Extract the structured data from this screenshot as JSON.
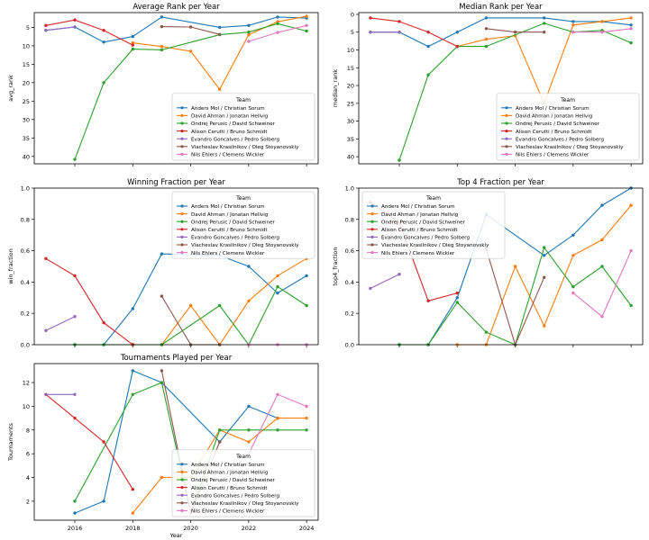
{
  "teams": [
    {
      "name": "Anders Mol / Christian Sorum",
      "color": "#1f77b4"
    },
    {
      "name": "David Ahman / Jonatan Hellvig",
      "color": "#ff7f0e"
    },
    {
      "name": "Ondrej Perusic / David Schweiner",
      "color": "#2ca02c"
    },
    {
      "name": "Alison Cerutti / Bruno Schmidt",
      "color": "#d62728"
    },
    {
      "name": "Evandro Goncalves / Pedro Solberg",
      "color": "#9467bd"
    },
    {
      "name": "Viacheslav Krasilnikov / Oleg Stoyanovskiy",
      "color": "#8c564b"
    },
    {
      "name": "Nils Ehlers / Clemens Wickler",
      "color": "#e377c2"
    }
  ],
  "legend_title": "Team",
  "chart_data": [
    {
      "type": "line",
      "title": "Average Rank per Year",
      "xlabel": "",
      "ylabel": "avg_rank",
      "inverted_y": true,
      "ylim": [
        1,
        42
      ],
      "yticks": [
        5,
        10,
        15,
        20,
        25,
        30,
        35,
        40
      ],
      "xlim": [
        2014.6,
        2024.4
      ],
      "xticks": [
        2016,
        2018,
        2020,
        2022,
        2024
      ],
      "show_xtick_labels": false,
      "legend_position": "lower-right",
      "series": [
        {
          "team": 0,
          "x": [
            2015,
            2016,
            2017,
            2018,
            2019,
            2021,
            2022,
            2023,
            2024
          ],
          "y": [
            5.8,
            4.9,
            9.0,
            7.5,
            2.2,
            5.0,
            4.5,
            2.2,
            2.5
          ]
        },
        {
          "team": 1,
          "x": [
            2018,
            2019,
            2020,
            2021,
            2022,
            2023,
            2024
          ],
          "y": [
            9.2,
            10.2,
            11.5,
            21.8,
            7.0,
            3.5,
            2.0
          ]
        },
        {
          "team": 2,
          "x": [
            2016,
            2017,
            2018,
            2019,
            2021,
            2022,
            2023,
            2024
          ],
          "y": [
            40.8,
            20.0,
            10.9,
            11.1,
            7.0,
            6.3,
            4.0,
            6.0
          ]
        },
        {
          "team": 3,
          "x": [
            2015,
            2016,
            2017,
            2018
          ],
          "y": [
            4.5,
            3.0,
            5.8,
            9.8
          ]
        },
        {
          "team": 4,
          "x": [
            2015,
            2016
          ],
          "y": [
            5.8,
            4.9
          ]
        },
        {
          "team": 5,
          "x": [
            2019,
            2020,
            2021
          ],
          "y": [
            4.8,
            4.9,
            6.9
          ]
        },
        {
          "team": 6,
          "x": [
            2022,
            2023,
            2024
          ],
          "y": [
            8.8,
            6.4,
            4.5
          ]
        }
      ]
    },
    {
      "type": "line",
      "title": "Median Rank per Year",
      "xlabel": "",
      "ylabel": "median_rank",
      "inverted_y": true,
      "ylim": [
        -0.5,
        42
      ],
      "yticks": [
        0,
        5,
        10,
        15,
        20,
        25,
        30,
        35,
        40
      ],
      "xlim": [
        2014.6,
        2024.4
      ],
      "xticks": [
        2016,
        2018,
        2020,
        2022,
        2024
      ],
      "show_xtick_labels": false,
      "legend_position": "lower-right",
      "series": [
        {
          "team": 0,
          "x": [
            2015,
            2016,
            2017,
            2018,
            2019,
            2021,
            2022,
            2023,
            2024
          ],
          "y": [
            5.0,
            5.0,
            9.0,
            5.0,
            1.0,
            1.0,
            2.0,
            2.0,
            3.0
          ]
        },
        {
          "team": 1,
          "x": [
            2018,
            2019,
            2020,
            2021,
            2022,
            2023,
            2024
          ],
          "y": [
            9.0,
            7.0,
            6.0,
            25.0,
            3.0,
            2.0,
            1.0
          ]
        },
        {
          "team": 2,
          "x": [
            2016,
            2017,
            2018,
            2019,
            2021,
            2022,
            2023,
            2024
          ],
          "y": [
            41.0,
            17.0,
            9.0,
            9.0,
            2.5,
            5.0,
            4.5,
            8.0
          ]
        },
        {
          "team": 3,
          "x": [
            2015,
            2016,
            2017,
            2018
          ],
          "y": [
            1.0,
            2.0,
            5.0,
            9.0
          ]
        },
        {
          "team": 4,
          "x": [
            2015,
            2016
          ],
          "y": [
            5.0,
            5.0
          ]
        },
        {
          "team": 5,
          "x": [
            2019,
            2020,
            2021
          ],
          "y": [
            4.0,
            5.0,
            5.0
          ]
        },
        {
          "team": 6,
          "x": [
            2022,
            2023,
            2024
          ],
          "y": [
            5.0,
            5.0,
            4.0
          ]
        }
      ]
    },
    {
      "type": "line",
      "title": "Winning Fraction per Year",
      "xlabel": "",
      "ylabel": "win_fraction",
      "inverted_y": false,
      "ylim": [
        0,
        1.0
      ],
      "yticks": [
        0.0,
        0.2,
        0.4,
        0.6,
        0.8,
        1.0
      ],
      "tick_format": 1,
      "xlim": [
        2014.6,
        2024.4
      ],
      "xticks": [
        2016,
        2018,
        2020,
        2022,
        2024
      ],
      "show_xtick_labels": false,
      "legend_position": "upper-right",
      "series": [
        {
          "team": 0,
          "x": [
            2016,
            2017,
            2018,
            2019,
            2021,
            2022,
            2023,
            2024
          ],
          "y": [
            0.0,
            0.0,
            0.23,
            0.58,
            0.57,
            0.5,
            0.33,
            0.44
          ]
        },
        {
          "team": 1,
          "x": [
            2018,
            2019,
            2020,
            2021,
            2022,
            2023,
            2024
          ],
          "y": [
            0.0,
            0.0,
            0.25,
            0.0,
            0.28,
            0.44,
            0.55
          ]
        },
        {
          "team": 2,
          "x": [
            2016,
            2017,
            2018,
            2019,
            2021,
            2022,
            2023,
            2024
          ],
          "y": [
            0.0,
            0.0,
            0.0,
            0.0,
            0.25,
            0.0,
            0.37,
            0.25
          ]
        },
        {
          "team": 3,
          "x": [
            2015,
            2016,
            2017,
            2018
          ],
          "y": [
            0.55,
            0.44,
            0.14,
            0.0
          ]
        },
        {
          "team": 4,
          "x": [
            2015,
            2016
          ],
          "y": [
            0.09,
            0.18
          ]
        },
        {
          "team": 5,
          "x": [
            2019,
            2020,
            2021
          ],
          "y": [
            0.31,
            0.0,
            0.0
          ]
        },
        {
          "team": 6,
          "x": [
            2022,
            2023,
            2024
          ],
          "y": [
            0.0,
            0.0,
            0.0
          ]
        }
      ]
    },
    {
      "type": "line",
      "title": "Top 4 Fraction per Year",
      "xlabel": "",
      "ylabel": "top4_fraction",
      "inverted_y": false,
      "ylim": [
        0,
        1.0
      ],
      "yticks": [
        0.0,
        0.2,
        0.4,
        0.6,
        0.8,
        1.0
      ],
      "tick_format": 1,
      "xlim": [
        2014.6,
        2024.4
      ],
      "xticks": [
        2016,
        2018,
        2020,
        2022,
        2024
      ],
      "show_xtick_labels": false,
      "legend_position": "upper-left",
      "series": [
        {
          "team": 0,
          "x": [
            2016,
            2017,
            2018,
            2019,
            2021,
            2022,
            2023,
            2024
          ],
          "y": [
            0.0,
            0.0,
            0.3,
            0.83,
            0.57,
            0.7,
            0.89,
            1.0
          ]
        },
        {
          "team": 1,
          "x": [
            2018,
            2019,
            2020,
            2021,
            2022,
            2023,
            2024
          ],
          "y": [
            0.0,
            0.0,
            0.5,
            0.12,
            0.57,
            0.67,
            0.89
          ]
        },
        {
          "team": 2,
          "x": [
            2016,
            2017,
            2018,
            2019,
            2020,
            2021,
            2022,
            2023,
            2024
          ],
          "y": [
            0.0,
            0.0,
            0.27,
            0.08,
            0.0,
            0.62,
            0.37,
            0.5,
            0.25
          ]
        },
        {
          "team": 3,
          "x": [
            2015,
            2016,
            2017,
            2018
          ],
          "y": [
            0.91,
            0.78,
            0.28,
            0.33
          ]
        },
        {
          "team": 4,
          "x": [
            2015,
            2016
          ],
          "y": [
            0.36,
            0.45
          ]
        },
        {
          "team": 5,
          "x": [
            2019,
            2020,
            2021
          ],
          "y": [
            0.61,
            0.0,
            0.43
          ]
        },
        {
          "team": 6,
          "x": [
            2022,
            2023,
            2024
          ],
          "y": [
            0.33,
            0.18,
            0.6
          ]
        }
      ]
    },
    {
      "type": "line",
      "title": "Tournaments Played per Year",
      "xlabel": "Year",
      "ylabel": "Tournaments",
      "inverted_y": false,
      "ylim": [
        0.4,
        13.6
      ],
      "yticks": [
        2,
        4,
        6,
        8,
        10,
        12
      ],
      "xlim": [
        2014.6,
        2024.4
      ],
      "xticks": [
        2016,
        2018,
        2020,
        2022,
        2024
      ],
      "show_xtick_labels": true,
      "legend_position": "lower-right",
      "series": [
        {
          "team": 0,
          "x": [
            2016,
            2017,
            2018,
            2019,
            2021,
            2022,
            2023
          ],
          "y": [
            1,
            2,
            13,
            12,
            7,
            10,
            9
          ]
        },
        {
          "team": 1,
          "x": [
            2018,
            2019,
            2020,
            2021,
            2022,
            2023,
            2024
          ],
          "y": [
            1,
            4,
            4,
            8,
            7,
            9,
            9
          ]
        },
        {
          "team": 2,
          "x": [
            2016,
            2018,
            2019,
            2020,
            2021,
            2022,
            2023,
            2024
          ],
          "y": [
            2,
            11,
            12,
            1,
            8,
            8,
            8,
            8
          ]
        },
        {
          "team": 3,
          "x": [
            2015,
            2016,
            2017,
            2018
          ],
          "y": [
            11,
            9,
            7,
            3
          ]
        },
        {
          "team": 4,
          "x": [
            2015,
            2016
          ],
          "y": [
            11,
            11
          ]
        },
        {
          "team": 5,
          "x": [
            2019,
            2020,
            2021
          ],
          "y": [
            13,
            1,
            7
          ]
        },
        {
          "team": 6,
          "x": [
            2022,
            2023,
            2024
          ],
          "y": [
            6,
            11,
            10
          ]
        }
      ]
    }
  ]
}
